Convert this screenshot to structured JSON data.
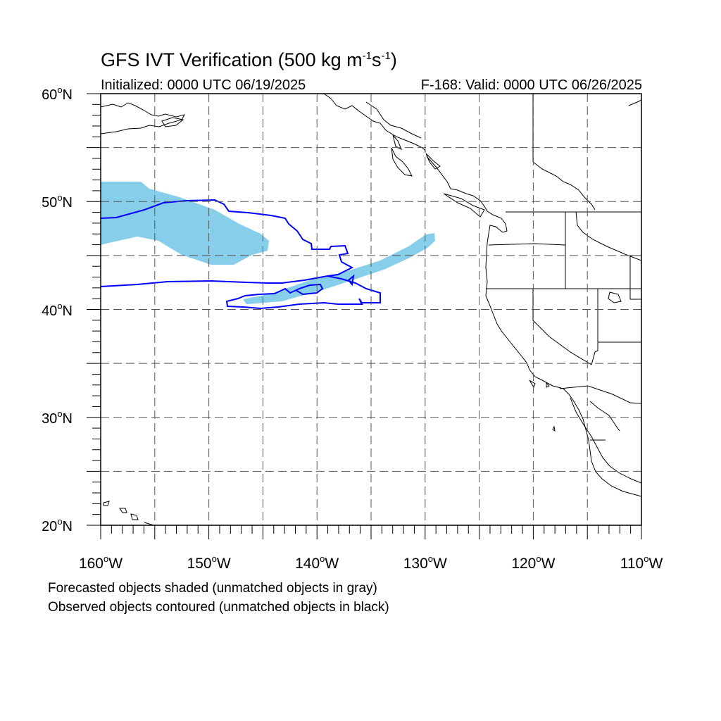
{
  "title": {
    "prefix": "GFS IVT Verification (500 kg m",
    "sup1": "-1",
    "mid": "s",
    "sup2": "-1",
    "suffix": ")"
  },
  "initialized": "Initialized: 0000 UTC 06/19/2025",
  "valid": "F-168: Valid: 0000 UTC 06/26/2025",
  "notes": {
    "line1": "Forecasted objects shaded (unmatched objects in gray)",
    "line2": "Observed objects contoured (unmatched objects in black)"
  },
  "map": {
    "lon_range": [
      -160,
      -110
    ],
    "lat_range": [
      20,
      60
    ],
    "lat_ticks": [
      {
        "value": 60,
        "label": "60",
        "suffix": "N"
      },
      {
        "value": 50,
        "label": "50",
        "suffix": "N"
      },
      {
        "value": 40,
        "label": "40",
        "suffix": "N"
      },
      {
        "value": 30,
        "label": "30",
        "suffix": "N"
      },
      {
        "value": 20,
        "label": "20",
        "suffix": "N"
      }
    ],
    "lon_ticks": [
      {
        "value": -160,
        "label": "160",
        "suffix": "W"
      },
      {
        "value": -150,
        "label": "150",
        "suffix": "W"
      },
      {
        "value": -140,
        "label": "140",
        "suffix": "W"
      },
      {
        "value": -130,
        "label": "130",
        "suffix": "W"
      },
      {
        "value": -120,
        "label": "120",
        "suffix": "W"
      },
      {
        "value": -110,
        "label": "110",
        "suffix": "W"
      }
    ],
    "grid": true,
    "colors": {
      "forecast_fill": "#87ceeb",
      "observed_contour": "#0000ff",
      "coast": "#000000"
    }
  }
}
